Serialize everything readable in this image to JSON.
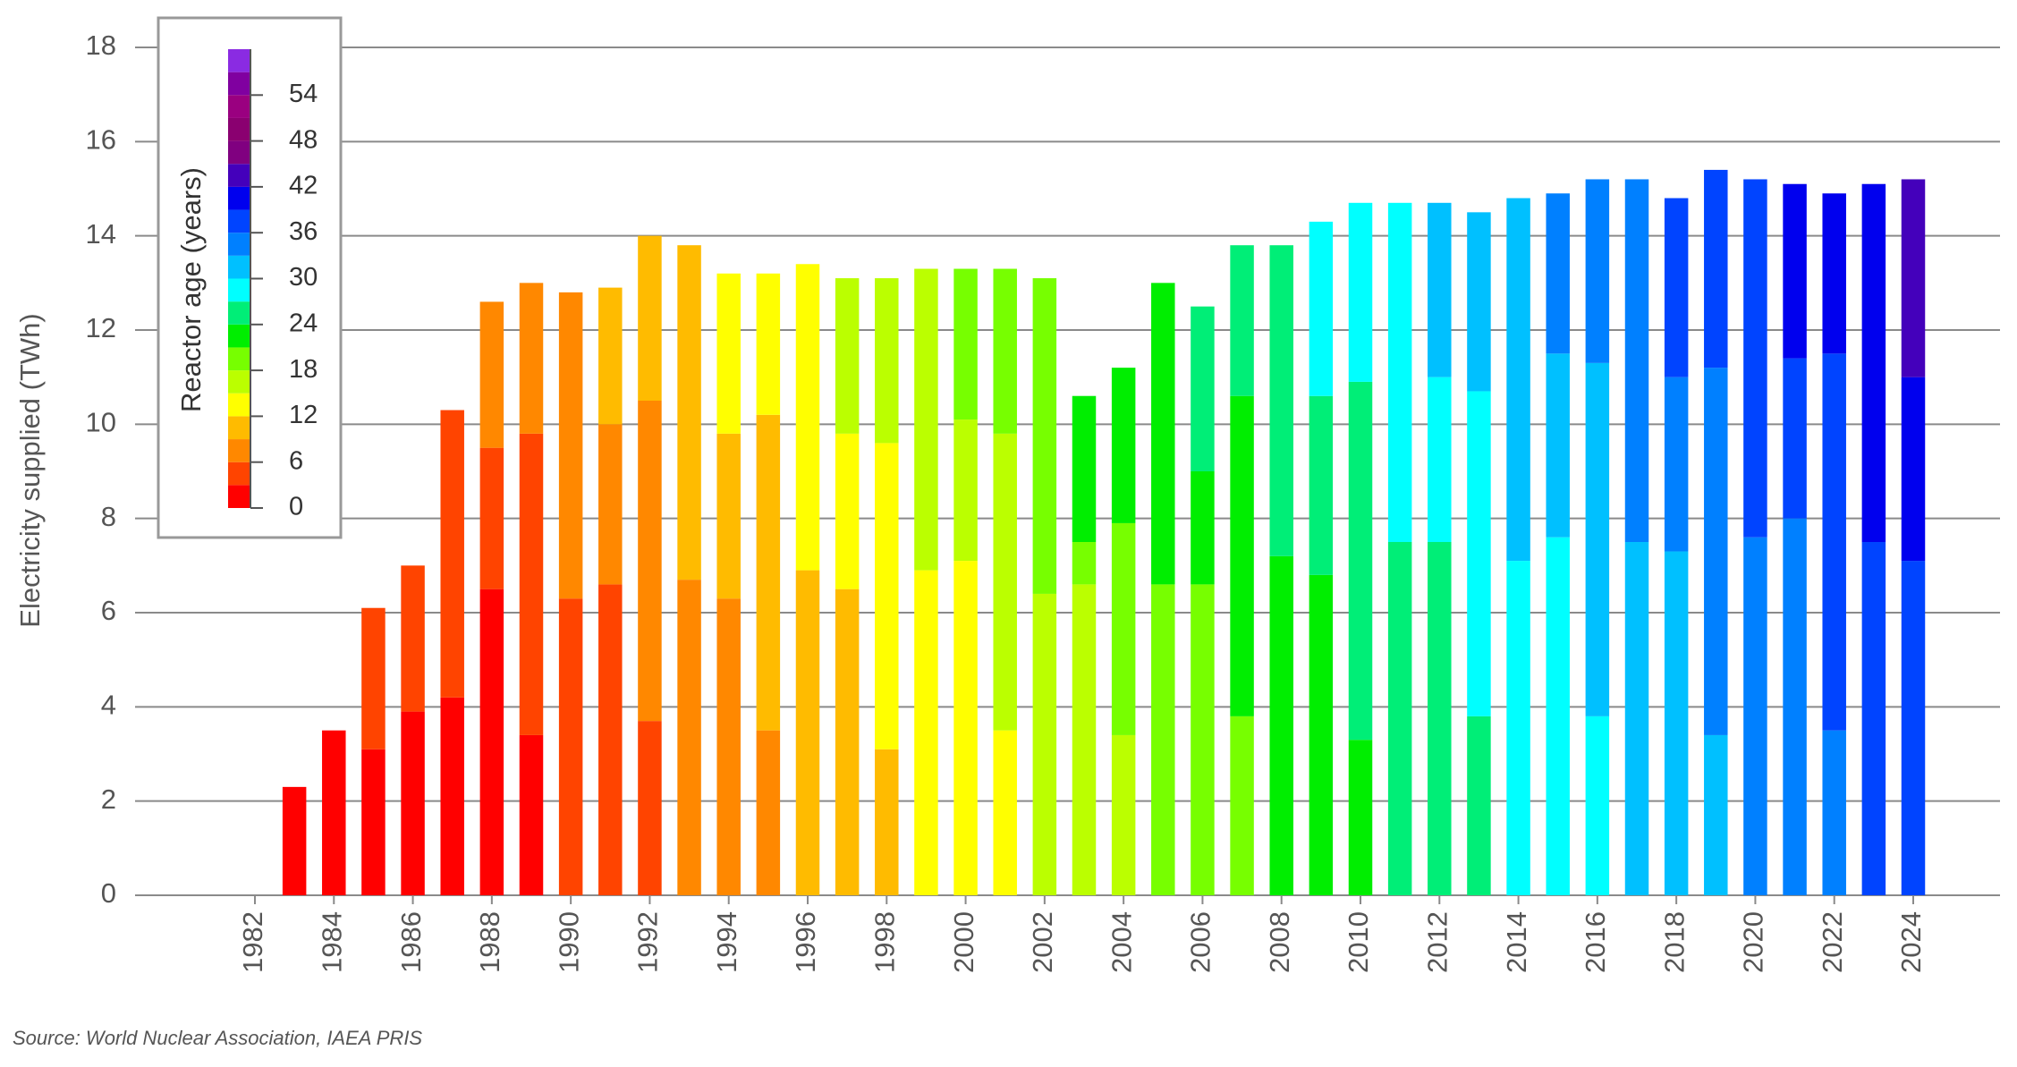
{
  "chart_data": {
    "type": "stacked_bar",
    "y_label": "Electricity supplied (TWh)",
    "source": "Source: World Nuclear Association, IAEA PRIS",
    "categories": [
      "1982",
      null,
      "1984",
      null,
      "1986",
      null,
      "1988",
      null,
      "1990",
      null,
      "1992",
      null,
      "1994",
      null,
      "1996",
      null,
      "1998",
      null,
      "2000",
      null,
      "2002",
      null,
      "2004",
      null,
      "2006",
      null,
      "2008",
      null,
      "2010",
      null,
      "2012",
      null,
      "2014",
      null,
      "2016",
      null,
      "2018",
      null,
      "2020",
      null,
      "2022",
      null,
      "2024"
    ],
    "series": [
      {
        "values": [
          null,
          2.3,
          3.5,
          3.1,
          3.9,
          4.2,
          6.5,
          3.4,
          6.3,
          6.6,
          3.7,
          6.7,
          6.3,
          3.5,
          6.9,
          6.5,
          3.1,
          6.9,
          7.1,
          3.5,
          6.4,
          6.6,
          3.4,
          6.6,
          6.6,
          3.8,
          7.2,
          6.8,
          3.3,
          7.5,
          7.5,
          3.8,
          7.1,
          7.6,
          3.8,
          7.5,
          7.3,
          3.4,
          7.6,
          8.0,
          3.5,
          7.5,
          7.1
        ],
        "colors": [
          null,
          "#ff0000",
          "#ff0000",
          "#ff0000",
          "#ff0000",
          "#ff0000",
          "#ff0000",
          "#ff0000",
          "#ff4400",
          "#ff4400",
          "#ff4400",
          "#ff8800",
          "#ff8800",
          "#ff8800",
          "#ffbb00",
          "#ffbb00",
          "#ffbb00",
          "#ffff00",
          "#ffff00",
          "#ffff00",
          "#bbff00",
          "#bbff00",
          "#bbff00",
          "#77ff00",
          "#77ff00",
          "#77ff00",
          "#00ee00",
          "#00ee00",
          "#00ee00",
          "#00ee77",
          "#00ee77",
          "#00ee77",
          "#00ffff",
          "#00ffff",
          "#00ffff",
          "#00c0ff",
          "#00c0ff",
          "#00c0ff",
          "#0080ff",
          "#0080ff",
          "#0080ff",
          "#0044ff",
          "#0044ff"
        ]
      },
      {
        "values": [
          null,
          null,
          null,
          3.0,
          3.1,
          6.1,
          3.0,
          6.4,
          6.5,
          3.4,
          6.8,
          7.1,
          3.5,
          6.7,
          6.5,
          3.3,
          6.5,
          6.4,
          3.0,
          6.3,
          6.7,
          0.9,
          4.5,
          6.4,
          2.4,
          6.8,
          6.6,
          3.8,
          7.6,
          7.2,
          3.5,
          6.9,
          7.7,
          3.9,
          7.5,
          7.7,
          3.7,
          7.8,
          7.6,
          3.4,
          8.0,
          7.6,
          3.9
        ],
        "colors": [
          null,
          null,
          null,
          "#ff4400",
          "#ff4400",
          "#ff4400",
          "#ff4400",
          "#ff4400",
          "#ff8800",
          "#ff8800",
          "#ff8800",
          "#ffbb00",
          "#ffbb00",
          "#ffbb00",
          "#ffff00",
          "#ffff00",
          "#ffff00",
          "#bbff00",
          "#bbff00",
          "#bbff00",
          "#77ff00",
          "#77ff00",
          "#77ff00",
          "#00ee00",
          "#00ee00",
          "#00ee00",
          "#00ee77",
          "#00ee77",
          "#00ee77",
          "#00ffff",
          "#00ffff",
          "#00ffff",
          "#00c0ff",
          "#00c0ff",
          "#00c0ff",
          "#0080ff",
          "#0080ff",
          "#0080ff",
          "#0044ff",
          "#0044ff",
          "#0044ff",
          "#0000ee",
          "#0000ee"
        ]
      },
      {
        "values": [
          null,
          null,
          null,
          null,
          null,
          null,
          3.1,
          3.2,
          null,
          2.9,
          3.5,
          null,
          3.4,
          3.0,
          null,
          3.3,
          3.5,
          null,
          3.2,
          3.5,
          null,
          3.1,
          3.3,
          null,
          3.5,
          3.2,
          null,
          3.7,
          3.8,
          null,
          3.7,
          3.8,
          null,
          3.4,
          3.9,
          null,
          3.8,
          4.2,
          null,
          3.7,
          3.4,
          null,
          4.2
        ],
        "colors": [
          null,
          null,
          null,
          null,
          null,
          null,
          "#ff8800",
          "#ff8800",
          null,
          "#ffbb00",
          "#ffbb00",
          null,
          "#ffff00",
          "#ffff00",
          null,
          "#bbff00",
          "#bbff00",
          null,
          "#77ff00",
          "#77ff00",
          null,
          "#00ee00",
          "#00ee00",
          null,
          "#00ee77",
          "#00ee77",
          null,
          "#00ffff",
          "#00ffff",
          null,
          "#00c0ff",
          "#00c0ff",
          null,
          "#0080ff",
          "#0080ff",
          null,
          "#0044ff",
          "#0044ff",
          null,
          "#0000ee",
          "#0000ee",
          null,
          "#4400bb"
        ]
      }
    ],
    "ylim": [
      0,
      18
    ],
    "yticks": [
      0,
      2,
      4,
      6,
      8,
      10,
      12,
      14,
      16,
      18
    ],
    "grid": true,
    "colorbar": {
      "label": "Reactor age (years)",
      "lim": [
        0,
        60
      ],
      "ticks": [
        0,
        6,
        12,
        18,
        24,
        30,
        36,
        42,
        48,
        54
      ],
      "colors": [
        "#ff0000",
        "#ff4400",
        "#ff8800",
        "#ffbb00",
        "#ffff00",
        "#bbff00",
        "#77ff00",
        "#00ee00",
        "#00ee77",
        "#00ffff",
        "#00c0ff",
        "#0080ff",
        "#0044ff",
        "#0000ee",
        "#4400bb",
        "#800080",
        "#8a0070",
        "#9a0080",
        "#8000a0",
        "#8a2be2"
      ]
    }
  }
}
